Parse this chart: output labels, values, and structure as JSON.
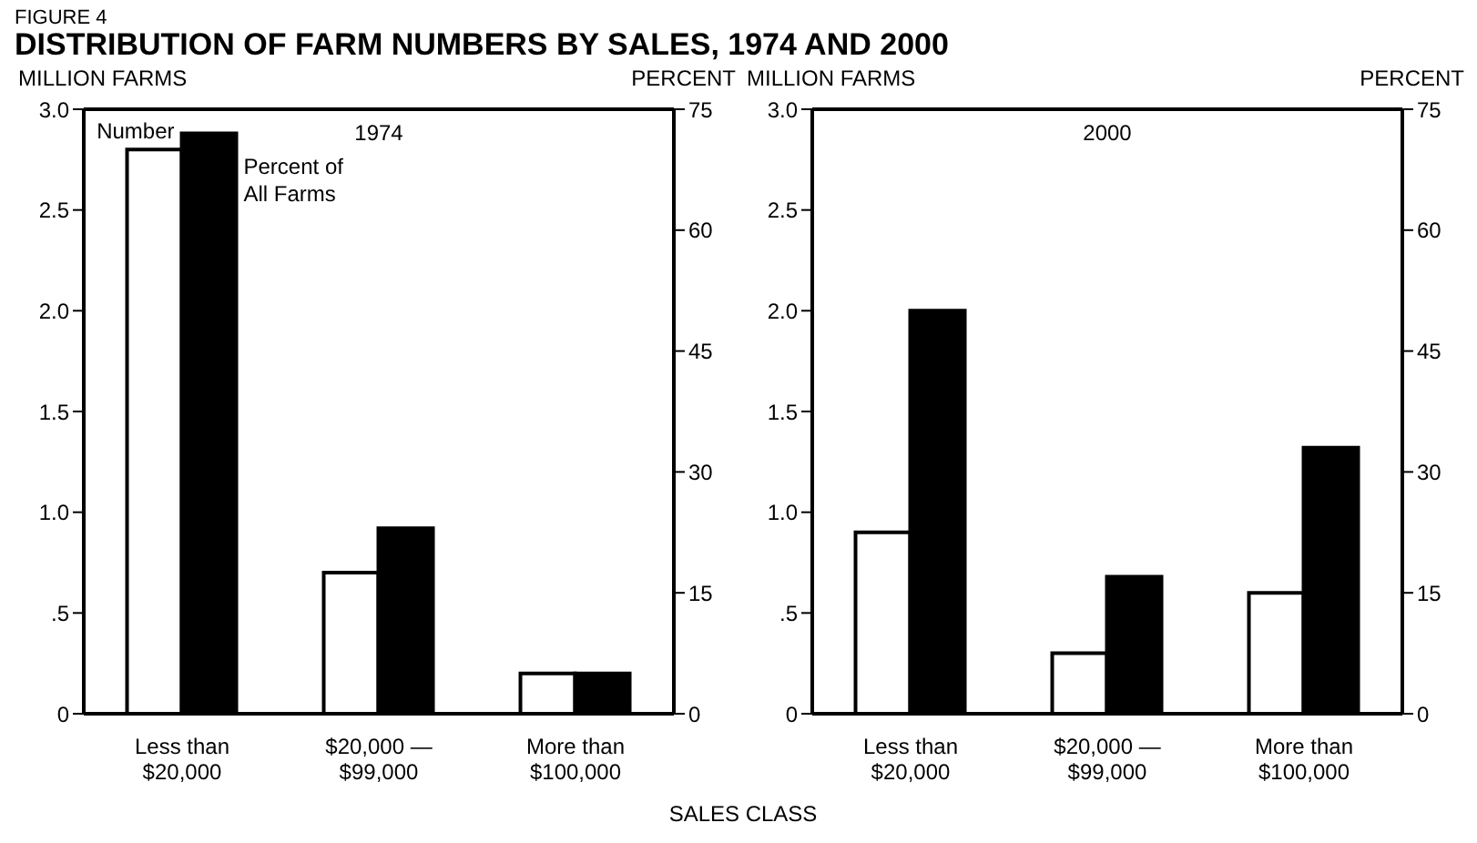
{
  "chart_data": [
    {
      "type": "bar",
      "title": "DISTRIBUTION OF FARM NUMBERS BY SALES, 1974 AND 2000",
      "subtitle": "1974",
      "xlabel": "SALES CLASS",
      "ylabel": "MILLION FARMS",
      "y2label": "PERCENT",
      "annotations": [
        "FIGURE 4"
      ],
      "categories": [
        "Less than $20,000",
        "$20,000 — $99,000",
        "More than $100,000"
      ],
      "series": [
        {
          "name": "Number",
          "color": "#ffffff",
          "values": [
            2.8,
            0.7,
            0.2
          ]
        },
        {
          "name": "Percent of All Farms",
          "color": "#000000",
          "axis": "y2",
          "values": [
            72,
            23,
            5
          ]
        }
      ],
      "ylim": [
        0,
        3
      ],
      "yticks": [
        0,
        {
          "value": 0.5,
          "label": ".5"
        },
        {
          "value": 1,
          "label": "1.0"
        },
        1.5,
        {
          "value": 2,
          "label": "2.0"
        },
        2.5,
        {
          "value": 3,
          "label": "3.0"
        }
      ],
      "y2lim": [
        0,
        75
      ],
      "y2ticks": [
        0,
        15,
        30,
        45,
        60,
        75
      ],
      "grid": false,
      "legend": false
    },
    {
      "type": "bar",
      "subtitle": "2000",
      "ylabel": "MILLION FARMS",
      "y2label": "PERCENT",
      "categories": [
        "Less than $20,000",
        "$20,000 — $99,000",
        "More than $100,000"
      ],
      "series": [
        {
          "color": "#ffffff",
          "values": [
            0.9,
            0.3,
            0.6
          ]
        },
        {
          "color": "#000000",
          "axis": "y2",
          "values": [
            50,
            17,
            33
          ]
        }
      ],
      "ylim": [
        0,
        3
      ],
      "yticks": [
        0,
        {
          "value": 0.5,
          "label": ".5"
        },
        {
          "value": 1,
          "label": "1.0"
        },
        1.5,
        {
          "value": 2,
          "label": "2.0"
        },
        2.5,
        {
          "value": 3,
          "label": "3.0"
        }
      ],
      "y2lim": [
        0,
        75
      ],
      "y2ticks": [
        0,
        15,
        30,
        45,
        60,
        75
      ],
      "grid": false,
      "legend": false
    }
  ]
}
